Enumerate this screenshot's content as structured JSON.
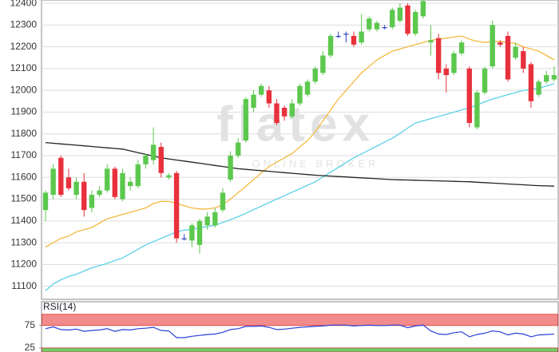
{
  "chart_data": {
    "type": "candlestick",
    "watermark": "flatex",
    "watermark_sub": "ONLINE BROKER",
    "ylim": [
      11040,
      12415
    ],
    "yticks": [
      11100,
      11200,
      11300,
      11400,
      11500,
      11600,
      11700,
      11800,
      11900,
      12000,
      12100,
      12200,
      12300,
      12400
    ],
    "grid": true,
    "up_color": "#5cc84e",
    "down_color": "#e8313c",
    "doji_color": "#3040c0",
    "candles": {
      "open": [
        11450,
        11520,
        11690,
        11600,
        11520,
        11580,
        11460,
        11520,
        11540,
        11640,
        11500,
        11560,
        11560,
        11660,
        11680,
        11740,
        11600,
        11620,
        11320,
        11310,
        11290,
        11380,
        11380,
        11450,
        11590,
        11700,
        11770,
        11920,
        11980,
        12000,
        11940,
        11920,
        11880,
        11940,
        11980,
        12040,
        12080,
        12160,
        12250,
        12260,
        12250,
        12220,
        12280,
        12280,
        12290,
        12290,
        12320,
        12390,
        12260,
        12340,
        12220,
        12240,
        12100,
        12080,
        12170,
        12100,
        11830,
        11990,
        12110,
        12220,
        12250,
        12150,
        12180,
        12120,
        11980,
        12040,
        12050
      ],
      "high": [
        11540,
        11660,
        11700,
        11640,
        11600,
        11620,
        11540,
        11560,
        11660,
        11650,
        11640,
        11600,
        11680,
        11710,
        11830,
        11760,
        11620,
        11630,
        11340,
        11390,
        11410,
        11440,
        11460,
        11550,
        11720,
        11780,
        11970,
        12000,
        12030,
        12020,
        11960,
        11930,
        11960,
        12030,
        12050,
        12110,
        12180,
        12260,
        12270,
        12270,
        12270,
        12350,
        12340,
        12320,
        12300,
        12380,
        12400,
        12400,
        12370,
        12420,
        12300,
        12260,
        12120,
        12180,
        12230,
        12110,
        12000,
        12110,
        12320,
        12230,
        12270,
        12220,
        12200,
        12130,
        12050,
        12090,
        12110
      ],
      "low": [
        11400,
        11500,
        11510,
        11540,
        11500,
        11420,
        11440,
        11510,
        11530,
        11500,
        11490,
        11540,
        11550,
        11640,
        11660,
        11600,
        11590,
        11300,
        11310,
        11280,
        11250,
        11360,
        11370,
        11440,
        11580,
        11690,
        11760,
        11900,
        11970,
        11920,
        11840,
        11860,
        11870,
        11930,
        11970,
        12030,
        12070,
        12150,
        12240,
        12220,
        12200,
        12210,
        12270,
        12270,
        12280,
        12280,
        12310,
        12250,
        12250,
        12330,
        12160,
        12050,
        11990,
        12070,
        12160,
        11830,
        11820,
        11980,
        12100,
        12200,
        12040,
        12140,
        12080,
        11920,
        11970,
        12030,
        12040
      ],
      "close": [
        11530,
        11640,
        11520,
        11550,
        11580,
        11450,
        11520,
        11540,
        11640,
        11510,
        11620,
        11580,
        11660,
        11700,
        11750,
        11620,
        11610,
        11320,
        11320,
        11380,
        11400,
        11420,
        11440,
        11530,
        11700,
        11760,
        11960,
        11980,
        12020,
        11940,
        11850,
        11880,
        11940,
        12020,
        12040,
        12100,
        12160,
        12250,
        12250,
        12260,
        12210,
        12270,
        12330,
        12310,
        12290,
        12370,
        12380,
        12260,
        12360,
        12410,
        12230,
        12080,
        12070,
        12170,
        12220,
        11850,
        11990,
        12100,
        12300,
        12210,
        12050,
        12200,
        12100,
        11950,
        12040,
        12070,
        12070
      ]
    },
    "lines": [
      {
        "color": "#f5b942",
        "values": [
          11280,
          11300,
          11320,
          11330,
          11350,
          11360,
          11370,
          11390,
          11410,
          11420,
          11430,
          11440,
          11450,
          11460,
          11480,
          11490,
          11490,
          11480,
          11470,
          11460,
          11455,
          11455,
          11460,
          11475,
          11500,
          11530,
          11560,
          11590,
          11620,
          11650,
          11670,
          11690,
          11710,
          11740,
          11770,
          11810,
          11860,
          11910,
          11960,
          12000,
          12040,
          12080,
          12110,
          12140,
          12160,
          12180,
          12190,
          12200,
          12210,
          12220,
          12230,
          12235,
          12240,
          12245,
          12250,
          12235,
          12225,
          12220,
          12225,
          12225,
          12220,
          12215,
          12200,
          12190,
          12180,
          12160,
          12140
        ]
      },
      {
        "color": "#5bd1e8",
        "values": [
          11080,
          11110,
          11130,
          11145,
          11155,
          11170,
          11185,
          11195,
          11205,
          11218,
          11230,
          11250,
          11270,
          11290,
          11305,
          11320,
          11335,
          11350,
          11358,
          11362,
          11368,
          11374,
          11380,
          11393,
          11406,
          11420,
          11435,
          11452,
          11468,
          11484,
          11500,
          11516,
          11532,
          11548,
          11564,
          11580,
          11602,
          11624,
          11646,
          11668,
          11690,
          11708,
          11726,
          11744,
          11762,
          11780,
          11803,
          11827,
          11850,
          11860,
          11870,
          11880,
          11890,
          11900,
          11910,
          11920,
          11933,
          11947,
          11960,
          11970,
          11980,
          11990,
          12000,
          12005,
          12010,
          12020,
          12030
        ]
      },
      {
        "color": "#222222",
        "values": [
          11760,
          11757,
          11754,
          11751,
          11748,
          11745,
          11742,
          11739,
          11736,
          11733,
          11730,
          11722,
          11714,
          11706,
          11698,
          11690,
          11685,
          11680,
          11675,
          11670,
          11665,
          11660,
          11655,
          11650,
          11645,
          11640,
          11637,
          11634,
          11631,
          11628,
          11625,
          11622,
          11619,
          11616,
          11613,
          11610,
          11608,
          11606,
          11604,
          11602,
          11600,
          11598,
          11596,
          11594,
          11592,
          11590,
          11589,
          11588,
          11587,
          11586,
          11585,
          11584,
          11583,
          11582,
          11581,
          11580,
          11578,
          11576,
          11574,
          11572,
          11570,
          11568,
          11566,
          11564,
          11562,
          11561,
          11560
        ]
      }
    ],
    "rsi": {
      "label": "RSI(14)",
      "color": "#2a3fd6",
      "ylim": [
        16,
        128
      ],
      "yticks": [
        25,
        75
      ],
      "upper_band": [
        75,
        100
      ],
      "upper_color": "#f28b8b",
      "lower_band": [
        0,
        25
      ],
      "lower_color": "#6ccf6c",
      "values": [
        68,
        72,
        66,
        65,
        67,
        62,
        64,
        65,
        68,
        62,
        66,
        65,
        68,
        69,
        71,
        64,
        63,
        48,
        48,
        51,
        53,
        55,
        56,
        60,
        66,
        68,
        73,
        73,
        74,
        71,
        66,
        67,
        69,
        71,
        72,
        73,
        74,
        76,
        76,
        76,
        74,
        75,
        76,
        75,
        75,
        76,
        76,
        70,
        74,
        76,
        63,
        56,
        55,
        59,
        61,
        50,
        55,
        58,
        63,
        61,
        54,
        58,
        56,
        50,
        54,
        55,
        56
      ]
    }
  }
}
